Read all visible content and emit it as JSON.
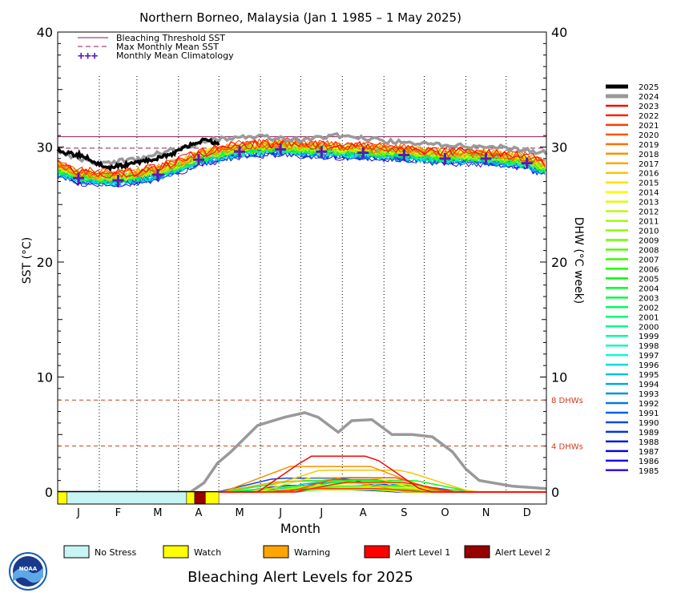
{
  "chart_data": {
    "type": "line",
    "title": "Northern Borneo, Malaysia      (Jan 1 1985 – 1 May 2025)",
    "xlabel": "Month",
    "ylabel_left": "SST (°C)",
    "ylabel_right": "DHW (°C week)",
    "ylim": [
      0,
      40
    ],
    "left_ticks": [
      "0",
      "10",
      "20",
      "30",
      "40"
    ],
    "right_ticks": [
      "0",
      "10",
      "20",
      "30",
      "40"
    ],
    "months": [
      "J",
      "F",
      "M",
      "A",
      "M",
      "J",
      "J",
      "A",
      "S",
      "O",
      "N",
      "D"
    ],
    "thresholds": {
      "bleaching_threshold_sst": 30.9,
      "max_monthly_mean_sst": 29.9,
      "dhw_lines": [
        {
          "value": 8,
          "label": "8 DHWs"
        },
        {
          "value": 4,
          "label": "4 DHWs"
        }
      ]
    },
    "legend_lines": [
      {
        "name": "Bleaching Threshold SST",
        "color": "#8b1a5a",
        "style": "solid"
      },
      {
        "name": "Max Monthly Mean SST",
        "color": "#8b1a5a",
        "style": "dashed"
      },
      {
        "name": "Monthly Mean Climatology",
        "color": "#5a1ab4",
        "style": "plus"
      }
    ],
    "climatology": {
      "months": [
        1,
        2,
        3,
        4,
        5,
        6,
        7,
        8,
        9,
        10,
        11,
        12
      ],
      "values": [
        27.3,
        27.1,
        27.6,
        28.9,
        29.6,
        29.8,
        29.6,
        29.5,
        29.3,
        29.0,
        29.0,
        28.6
      ]
    },
    "sst_2025": {
      "name": "2025",
      "day": [
        1,
        10,
        20,
        30,
        40,
        50,
        60,
        70,
        80,
        90,
        100,
        110,
        121
      ],
      "values": [
        29.7,
        29.4,
        29.3,
        28.6,
        28.2,
        28.4,
        28.6,
        28.9,
        29.2,
        29.6,
        30.2,
        30.6,
        30.3
      ]
    },
    "sst_2024": {
      "name": "2024",
      "day": [
        1,
        30,
        60,
        90,
        120,
        150,
        180,
        210,
        240,
        270,
        300,
        330,
        365
      ],
      "values": [
        29.6,
        28.6,
        28.9,
        29.9,
        30.7,
        30.9,
        30.6,
        31.0,
        30.6,
        30.3,
        30.1,
        30.0,
        29.5
      ]
    },
    "dhw_2024": {
      "name": "2024",
      "day": [
        1,
        100,
        110,
        120,
        130,
        150,
        170,
        185,
        195,
        210,
        220,
        235,
        250,
        265,
        280,
        295,
        305,
        315,
        340,
        365
      ],
      "values": [
        0,
        0,
        0.8,
        2.5,
        3.5,
        5.8,
        6.5,
        6.9,
        6.5,
        5.2,
        6.2,
        6.3,
        5.0,
        5.0,
        4.8,
        3.5,
        2.0,
        1.0,
        0.5,
        0.3
      ]
    },
    "dhw_other_peak": 3.4,
    "years": [
      "2025",
      "2024",
      "2023",
      "2022",
      "2021",
      "2020",
      "2019",
      "2018",
      "2017",
      "2016",
      "2015",
      "2014",
      "2013",
      "2012",
      "2011",
      "2010",
      "2009",
      "2008",
      "2007",
      "2006",
      "2005",
      "2004",
      "2003",
      "2002",
      "2001",
      "2000",
      "1999",
      "1998",
      "1997",
      "1996",
      "1995",
      "1994",
      "1993",
      "1992",
      "1991",
      "1990",
      "1989",
      "1988",
      "1987",
      "1986",
      "1985"
    ],
    "alert_strip": [
      {
        "from": 1,
        "to": 8,
        "level": "Watch"
      },
      {
        "from": 8,
        "to": 97,
        "level": "No Stress"
      },
      {
        "from": 97,
        "to": 103,
        "level": "Watch"
      },
      {
        "from": 103,
        "to": 111,
        "level": "Alert Level 2"
      },
      {
        "from": 111,
        "to": 121,
        "level": "Watch"
      }
    ],
    "alert_legend": [
      {
        "label": "No Stress",
        "color": "#c8f4f4"
      },
      {
        "label": "Watch",
        "color": "#ffff00"
      },
      {
        "label": "Warning",
        "color": "#ffa500"
      },
      {
        "label": "Alert Level 1",
        "color": "#ff0000"
      },
      {
        "label": "Alert Level 2",
        "color": "#960000"
      }
    ]
  },
  "footer_title": "Bleaching Alert Levels for 2025",
  "logo_text": "NOAA"
}
